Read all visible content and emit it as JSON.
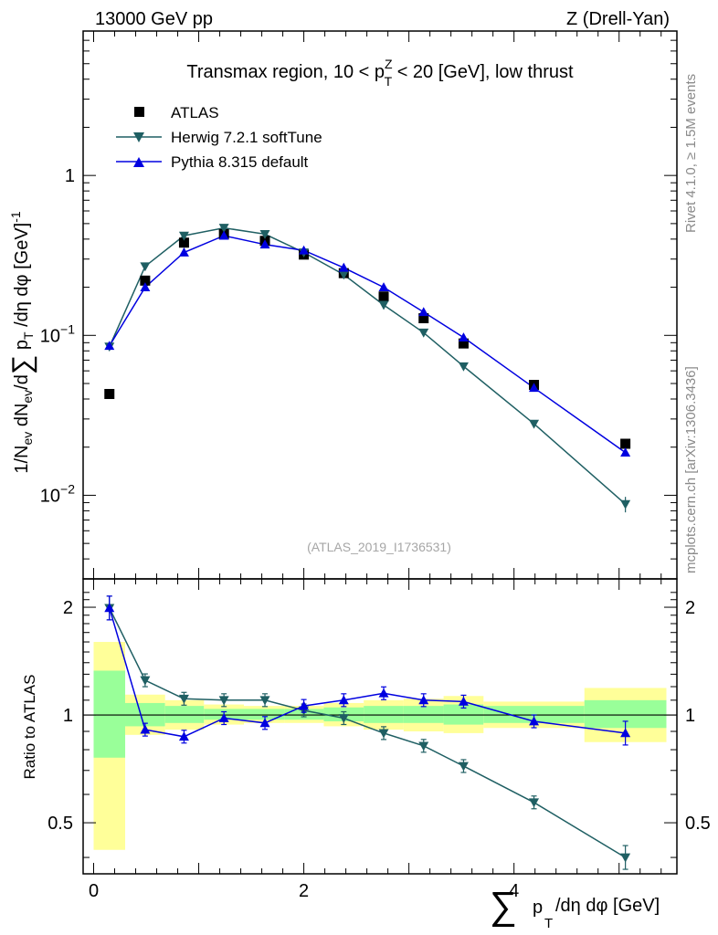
{
  "header": {
    "left": "13000 GeV pp",
    "right": "Z (Drell-Yan)"
  },
  "side": {
    "rivet": "Rivet 4.1.0, ≥ 1.5M events",
    "mcplots": "mcplots.cern.ch [arXiv:1306.3436]"
  },
  "reference": "(ATLAS_2019_I1736531)",
  "colors": {
    "atlas": "#000000",
    "herwig": "#1f5f63",
    "pythia": "#0000e0",
    "band_inner": "#99ff99",
    "band_outer": "#ffff99"
  },
  "chart_data": [
    {
      "type": "scatter",
      "title": "Transmax region, 10 < p_T^Z < 20 [GeV], low thrust",
      "xlabel": "∑ p_T/dη dφ [GeV]",
      "ylabel": "1/N_ev dN_ev/d∑ p_T /dη dφ [GeV]^-1",
      "yscale": "log",
      "xlim": [
        -0.1,
        5.55
      ],
      "ylim": [
        0.003,
        8
      ],
      "ytick_labels": [
        "10^-2",
        "10^-1",
        "1"
      ],
      "legend": [
        "ATLAS",
        "Herwig 7.2.1 softTune",
        "Pythia 8.315 default"
      ],
      "series": [
        {
          "name": "ATLAS",
          "marker": "square",
          "x": [
            0.15,
            0.49,
            0.86,
            1.24,
            1.63,
            2.0,
            2.38,
            2.76,
            3.14,
            3.52,
            4.19,
            5.06
          ],
          "y": [
            0.043,
            0.22,
            0.38,
            0.43,
            0.39,
            0.32,
            0.245,
            0.175,
            0.128,
            0.089,
            0.049,
            0.021
          ]
        },
        {
          "name": "Herwig 7.2.1 softTune",
          "marker": "triangle-down",
          "x": [
            0.15,
            0.49,
            0.86,
            1.24,
            1.63,
            2.0,
            2.38,
            2.76,
            3.14,
            3.52,
            4.19,
            5.06
          ],
          "y": [
            0.085,
            0.27,
            0.42,
            0.47,
            0.43,
            0.33,
            0.24,
            0.155,
            0.104,
            0.064,
            0.028,
            0.0088
          ]
        },
        {
          "name": "Pythia 8.315 default",
          "marker": "triangle-up",
          "x": [
            0.15,
            0.49,
            0.86,
            1.24,
            1.63,
            2.0,
            2.38,
            2.76,
            3.14,
            3.52,
            4.19,
            5.06
          ],
          "y": [
            0.086,
            0.2,
            0.33,
            0.42,
            0.37,
            0.34,
            0.265,
            0.2,
            0.14,
            0.097,
            0.047,
            0.0185
          ]
        }
      ]
    },
    {
      "type": "line",
      "title": "",
      "xlabel": "∑ p_T/dη dφ [GeV]",
      "ylabel": "Ratio to ATLAS",
      "yscale": "log",
      "xlim": [
        -0.1,
        5.55
      ],
      "ylim": [
        0.36,
        2.4
      ],
      "xticks": [
        0,
        2,
        4
      ],
      "yticks": [
        0.5,
        1,
        2
      ],
      "reference_line": 1,
      "bins": [
        [
          0,
          0.3
        ],
        [
          0.3,
          0.68
        ],
        [
          0.68,
          1.05
        ],
        [
          1.05,
          1.43
        ],
        [
          1.43,
          1.82
        ],
        [
          1.82,
          2.19
        ],
        [
          2.19,
          2.57
        ],
        [
          2.57,
          2.95
        ],
        [
          2.95,
          3.33
        ],
        [
          3.33,
          3.71
        ],
        [
          3.71,
          4.67
        ],
        [
          4.67,
          5.45
        ]
      ],
      "band_inner": [
        [
          0.76,
          1.33
        ],
        [
          0.93,
          1.08
        ],
        [
          0.95,
          1.06
        ],
        [
          0.97,
          1.04
        ],
        [
          0.97,
          1.04
        ],
        [
          0.97,
          1.04
        ],
        [
          0.96,
          1.05
        ],
        [
          0.95,
          1.06
        ],
        [
          0.95,
          1.06
        ],
        [
          0.94,
          1.07
        ],
        [
          0.95,
          1.06
        ],
        [
          0.92,
          1.1
        ]
      ],
      "band_outer": [
        [
          0.42,
          1.6
        ],
        [
          0.88,
          1.14
        ],
        [
          0.91,
          1.1
        ],
        [
          0.94,
          1.07
        ],
        [
          0.95,
          1.06
        ],
        [
          0.95,
          1.06
        ],
        [
          0.93,
          1.08
        ],
        [
          0.91,
          1.1
        ],
        [
          0.9,
          1.11
        ],
        [
          0.89,
          1.13
        ],
        [
          0.92,
          1.09
        ],
        [
          0.84,
          1.19
        ]
      ],
      "series": [
        {
          "name": "Herwig 7.2.1 softTune",
          "marker": "triangle-down",
          "x": [
            0.15,
            0.49,
            0.86,
            1.24,
            1.63,
            2.0,
            2.38,
            2.76,
            3.14,
            3.52,
            4.19,
            5.06
          ],
          "y": [
            1.99,
            1.25,
            1.11,
            1.1,
            1.1,
            1.03,
            0.98,
            0.89,
            0.82,
            0.72,
            0.57,
            0.4
          ]
        },
        {
          "name": "Pythia 8.315 default",
          "marker": "triangle-up",
          "x": [
            0.15,
            0.49,
            0.86,
            1.24,
            1.63,
            2.0,
            2.38,
            2.76,
            3.14,
            3.52,
            4.19,
            5.06
          ],
          "y": [
            1.99,
            0.91,
            0.87,
            0.98,
            0.95,
            1.06,
            1.1,
            1.15,
            1.1,
            1.09,
            0.96,
            0.89
          ]
        }
      ]
    }
  ]
}
